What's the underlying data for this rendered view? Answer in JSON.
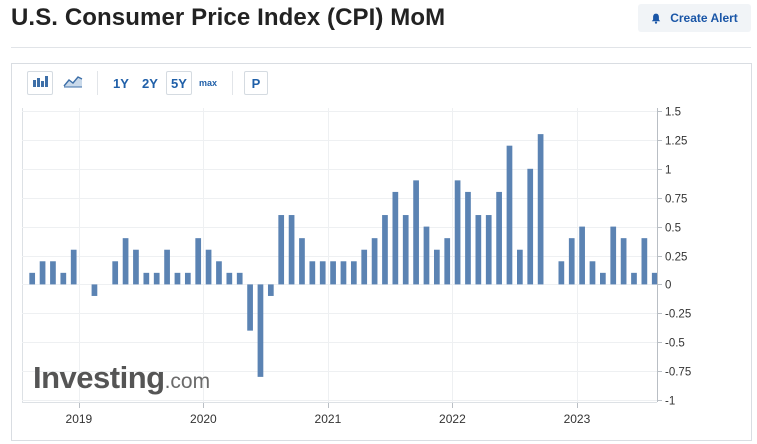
{
  "header": {
    "title": "U.S. Consumer Price Index (CPI) MoM",
    "create_alert_label": "Create Alert"
  },
  "toolbar": {
    "chart_types": [
      {
        "name": "bar-chart-icon",
        "active": true
      },
      {
        "name": "line-chart-icon",
        "active": false
      }
    ],
    "ranges": [
      {
        "label": "1Y",
        "active": false
      },
      {
        "label": "2Y",
        "active": false
      },
      {
        "label": "5Y",
        "active": true
      },
      {
        "label": "max",
        "active": false
      }
    ],
    "period_label": "P"
  },
  "watermark": {
    "main": "Investing",
    "tld": ".com"
  },
  "colors": {
    "bar": "#5b83b3",
    "grid": "#eef0f2",
    "axis": "#b9bec4",
    "link": "#1f5fa8"
  },
  "chart_data": {
    "type": "bar",
    "title": "",
    "xlabel": "",
    "ylabel": "",
    "ylim": [
      -1,
      1.5
    ],
    "y_ticks": [
      1.5,
      1.25,
      1,
      0.75,
      0.5,
      0.25,
      0,
      -0.25,
      -0.5,
      -0.75,
      -1
    ],
    "y_tick_labels": [
      "1.5",
      "1.25",
      "1",
      "0.75",
      "0.5",
      "0.25",
      "0",
      "-0.25",
      "-0.5",
      "-0.75",
      "-1"
    ],
    "x_tick_labels": [
      "2019",
      "2020",
      "2021",
      "2022",
      "2023"
    ],
    "grid": true,
    "y_axis_position": "right",
    "categories": [
      "2018-08",
      "2018-09",
      "2018-10",
      "2018-11",
      "2018-12",
      "2019-01",
      "2019-02",
      "2019-03",
      "2019-04",
      "2019-05",
      "2019-06",
      "2019-07",
      "2019-08",
      "2019-09",
      "2019-10",
      "2019-11",
      "2019-12",
      "2020-01",
      "2020-02",
      "2020-03",
      "2020-04",
      "2020-05",
      "2020-06",
      "2020-07",
      "2020-08",
      "2020-09",
      "2020-10",
      "2020-11",
      "2020-12",
      "2021-01",
      "2021-02",
      "2021-03",
      "2021-04",
      "2021-05",
      "2021-06",
      "2021-07",
      "2021-08",
      "2021-09",
      "2021-10",
      "2021-11",
      "2021-12",
      "2022-01",
      "2022-02",
      "2022-03",
      "2022-04",
      "2022-05",
      "2022-06",
      "2022-07",
      "2022-08",
      "2022-09",
      "2022-10",
      "2022-11",
      "2022-12",
      "2023-01",
      "2023-02",
      "2023-03",
      "2023-04",
      "2023-05",
      "2023-06",
      "2023-07",
      "2023-08"
    ],
    "values": [
      0.1,
      0.2,
      0.2,
      0.1,
      0.3,
      0.0,
      -0.1,
      0.0,
      0.2,
      0.4,
      0.3,
      0.1,
      0.1,
      0.3,
      0.1,
      0.1,
      0.4,
      0.3,
      0.2,
      0.1,
      0.1,
      -0.4,
      -0.8,
      -0.1,
      0.6,
      0.6,
      0.4,
      0.2,
      0.2,
      0.2,
      0.2,
      0.2,
      0.3,
      0.4,
      0.6,
      0.8,
      0.6,
      0.9,
      0.5,
      0.3,
      0.4,
      0.9,
      0.8,
      0.6,
      0.6,
      0.8,
      1.2,
      0.3,
      1.0,
      1.3,
      0.0,
      0.2,
      0.4,
      0.5,
      0.2,
      0.1,
      0.5,
      0.4,
      0.1,
      0.4,
      0.1
    ]
  }
}
